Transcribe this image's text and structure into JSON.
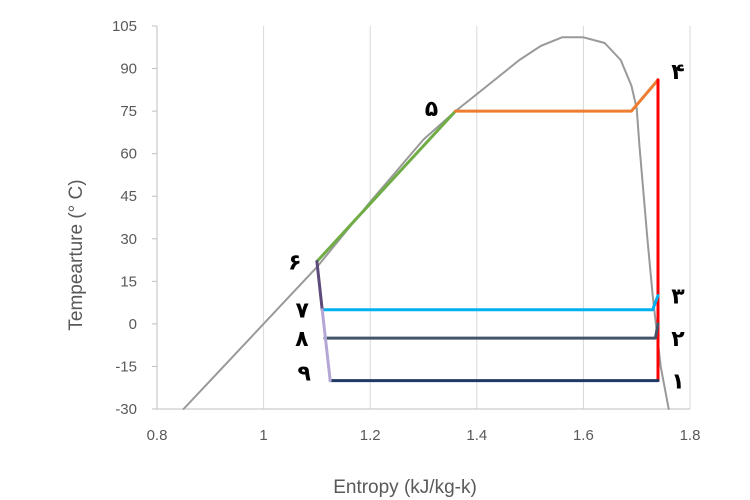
{
  "chart_data": {
    "type": "line",
    "title": "",
    "xlabel": "Entropy (kJ/kg-k)",
    "ylabel": "Tempearture (° C)",
    "xlim": [
      0.8,
      1.8
    ],
    "ylim": [
      -30,
      105
    ],
    "xticks": [
      0.8,
      1,
      1.2,
      1.4,
      1.6,
      1.8
    ],
    "xtick_labels": [
      "0.8",
      "1",
      "1.2",
      "1.4",
      "1.6",
      "1.8"
    ],
    "yticks": [
      -30,
      -15,
      0,
      15,
      30,
      45,
      60,
      75,
      90,
      105
    ],
    "ytick_labels": [
      "-30",
      "-15",
      "0",
      "15",
      "30",
      "45",
      "60",
      "75",
      "90",
      "105"
    ],
    "grid": "vertical",
    "legend": "none",
    "series": [
      {
        "color": "#999999",
        "x": [
          0.85,
          0.95,
          1.1,
          1.2,
          1.3,
          1.36,
          1.42,
          1.48,
          1.52,
          1.56,
          1.6,
          1.64,
          1.67,
          1.69,
          1.7,
          1.705,
          1.72,
          1.73,
          1.745,
          1.76
        ],
        "y": [
          -30,
          -10,
          20,
          43,
          65,
          75,
          84,
          93,
          98,
          101,
          101,
          99,
          93,
          84,
          76,
          63,
          30,
          10,
          -15,
          -30
        ]
      },
      {
        "color": "#70AD47",
        "x": [
          1.1,
          1.36
        ],
        "y": [
          22,
          75
        ]
      },
      {
        "color": "#ED7D31",
        "x": [
          1.36,
          1.69,
          1.74
        ],
        "y": [
          75,
          75,
          86
        ]
      },
      {
        "color": "#FF0000",
        "x": [
          1.74,
          1.74
        ],
        "y": [
          86,
          -20
        ]
      },
      {
        "color": "#00B0F0",
        "x": [
          1.11,
          1.73,
          1.74
        ],
        "y": [
          5,
          5,
          10
        ]
      },
      {
        "color": "#44546A",
        "x": [
          1.115,
          1.735,
          1.74
        ],
        "y": [
          -5,
          -5,
          0
        ]
      },
      {
        "color": "#203864",
        "x": [
          1.125,
          1.74
        ],
        "y": [
          -20,
          -20
        ]
      },
      {
        "color": "#5B4A7A",
        "x": [
          1.1,
          1.11
        ],
        "y": [
          22,
          5
        ]
      },
      {
        "color": "#B4A7D6",
        "x": [
          1.11,
          1.125
        ],
        "y": [
          5,
          -20
        ]
      }
    ],
    "point_labels": [
      {
        "text": "۱",
        "x": 1.74,
        "y": -20
      },
      {
        "text": "۲",
        "x": 1.74,
        "y": -5
      },
      {
        "text": "۳",
        "x": 1.74,
        "y": 10
      },
      {
        "text": "۴",
        "x": 1.74,
        "y": 86
      },
      {
        "text": "۵",
        "x": 1.36,
        "y": 75
      },
      {
        "text": "۶",
        "x": 1.1,
        "y": 22
      },
      {
        "text": "۷",
        "x": 1.11,
        "y": 5
      },
      {
        "text": "۸",
        "x": 1.115,
        "y": -5
      },
      {
        "text": "۹",
        "x": 1.125,
        "y": -20
      }
    ]
  }
}
